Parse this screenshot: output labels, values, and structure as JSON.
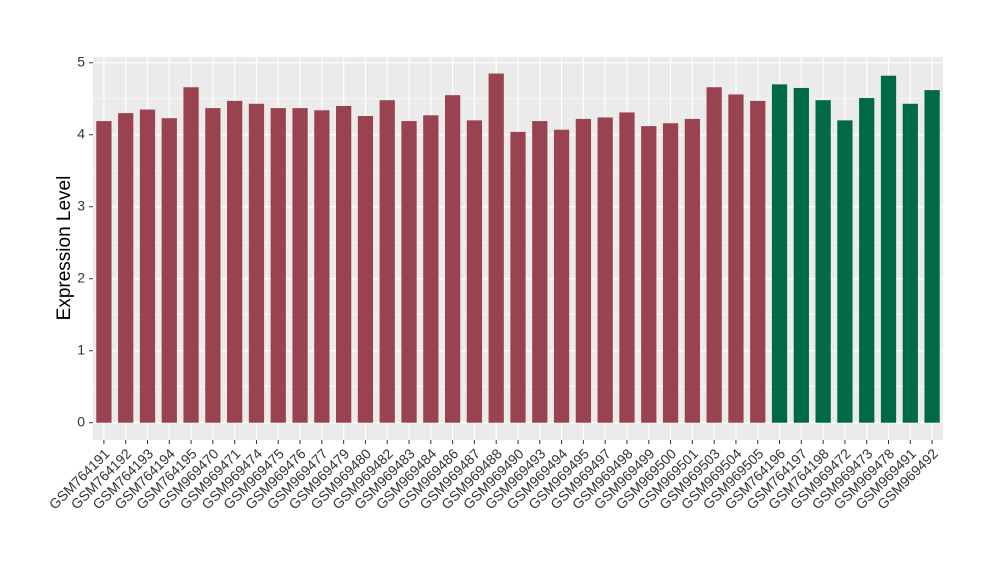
{
  "chart_data": {
    "type": "bar",
    "y_label": "Expression Level",
    "categories": [
      "GSM764191",
      "GSM764192",
      "GSM764193",
      "GSM764194",
      "GSM764195",
      "GSM969470",
      "GSM969471",
      "GSM969474",
      "GSM969475",
      "GSM969476",
      "GSM969477",
      "GSM969479",
      "GSM969480",
      "GSM969482",
      "GSM969483",
      "GSM969484",
      "GSM969486",
      "GSM969487",
      "GSM969488",
      "GSM969490",
      "GSM969493",
      "GSM969494",
      "GSM969495",
      "GSM969497",
      "GSM969498",
      "GSM969499",
      "GSM969500",
      "GSM969501",
      "GSM969503",
      "GSM969504",
      "GSM969505",
      "GSM764196",
      "GSM764197",
      "GSM764198",
      "GSM969472",
      "GSM969473",
      "GSM969478",
      "GSM969491",
      "GSM969492"
    ],
    "values": [
      4.19,
      4.3,
      4.35,
      4.23,
      4.66,
      4.37,
      4.47,
      4.43,
      4.37,
      4.37,
      4.34,
      4.4,
      4.26,
      4.48,
      4.19,
      4.27,
      4.55,
      4.2,
      4.85,
      4.04,
      4.19,
      4.07,
      4.22,
      4.24,
      4.31,
      4.12,
      4.16,
      4.22,
      4.66,
      4.56,
      4.47,
      4.7,
      4.65,
      4.48,
      4.2,
      4.51,
      4.82,
      4.43,
      4.62
    ],
    "colors": [
      "#9a4350",
      "#9a4350",
      "#9a4350",
      "#9a4350",
      "#9a4350",
      "#9a4350",
      "#9a4350",
      "#9a4350",
      "#9a4350",
      "#9a4350",
      "#9a4350",
      "#9a4350",
      "#9a4350",
      "#9a4350",
      "#9a4350",
      "#9a4350",
      "#9a4350",
      "#9a4350",
      "#9a4350",
      "#9a4350",
      "#9a4350",
      "#9a4350",
      "#9a4350",
      "#9a4350",
      "#9a4350",
      "#9a4350",
      "#9a4350",
      "#9a4350",
      "#9a4350",
      "#9a4350",
      "#9a4350",
      "#006a45",
      "#006a45",
      "#006a45",
      "#006a45",
      "#006a45",
      "#006a45",
      "#006a45",
      "#006a45"
    ],
    "ylim": [
      -0.24,
      5.08
    ],
    "yticks": [
      0,
      1,
      2,
      3,
      4,
      5
    ],
    "grid": true
  }
}
